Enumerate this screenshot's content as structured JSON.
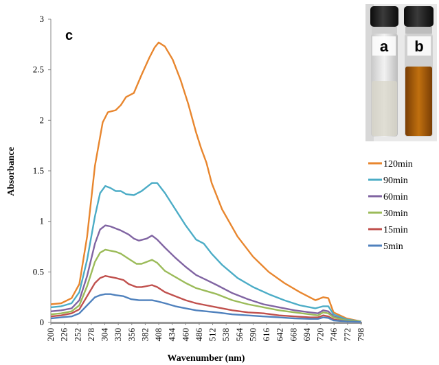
{
  "chart_data": {
    "type": "line",
    "panel_label": "c",
    "xlabel": "Wavenumber (nm)",
    "ylabel": "Absorbance",
    "xlim": [
      200,
      800
    ],
    "ylim": [
      0,
      3
    ],
    "x_ticks": [
      "200",
      "226",
      "252",
      "278",
      "304",
      "330",
      "356",
      "382",
      "408",
      "434",
      "460",
      "486",
      "512",
      "538",
      "564",
      "590",
      "616",
      "642",
      "668",
      "694",
      "720",
      "746",
      "772",
      "798"
    ],
    "y_ticks": [
      "0",
      "0.5",
      "1",
      "1.5",
      "2",
      "2.5",
      "3"
    ],
    "grid": false,
    "legend_position": "right",
    "inset_labels": [
      "a",
      "b"
    ],
    "series": [
      {
        "name": "120min",
        "color": "#E8862E",
        "points": [
          [
            200,
            0.18
          ],
          [
            220,
            0.19
          ],
          [
            240,
            0.24
          ],
          [
            255,
            0.38
          ],
          [
            270,
            0.85
          ],
          [
            285,
            1.55
          ],
          [
            300,
            1.98
          ],
          [
            310,
            2.08
          ],
          [
            325,
            2.1
          ],
          [
            335,
            2.15
          ],
          [
            345,
            2.23
          ],
          [
            360,
            2.27
          ],
          [
            375,
            2.45
          ],
          [
            390,
            2.62
          ],
          [
            400,
            2.72
          ],
          [
            408,
            2.77
          ],
          [
            420,
            2.73
          ],
          [
            435,
            2.6
          ],
          [
            450,
            2.4
          ],
          [
            465,
            2.16
          ],
          [
            480,
            1.88
          ],
          [
            490,
            1.72
          ],
          [
            500,
            1.58
          ],
          [
            510,
            1.38
          ],
          [
            530,
            1.12
          ],
          [
            560,
            0.85
          ],
          [
            590,
            0.65
          ],
          [
            620,
            0.5
          ],
          [
            650,
            0.39
          ],
          [
            680,
            0.3
          ],
          [
            710,
            0.22
          ],
          [
            725,
            0.25
          ],
          [
            735,
            0.24
          ],
          [
            745,
            0.1
          ],
          [
            770,
            0.04
          ],
          [
            798,
            0.01
          ]
        ]
      },
      {
        "name": "90min",
        "color": "#4BACC6",
        "points": [
          [
            200,
            0.15
          ],
          [
            220,
            0.16
          ],
          [
            240,
            0.19
          ],
          [
            255,
            0.3
          ],
          [
            270,
            0.62
          ],
          [
            285,
            1.05
          ],
          [
            295,
            1.28
          ],
          [
            305,
            1.35
          ],
          [
            315,
            1.33
          ],
          [
            325,
            1.3
          ],
          [
            335,
            1.3
          ],
          [
            345,
            1.27
          ],
          [
            360,
            1.26
          ],
          [
            375,
            1.3
          ],
          [
            385,
            1.34
          ],
          [
            395,
            1.38
          ],
          [
            405,
            1.38
          ],
          [
            420,
            1.28
          ],
          [
            440,
            1.12
          ],
          [
            460,
            0.96
          ],
          [
            480,
            0.82
          ],
          [
            495,
            0.78
          ],
          [
            510,
            0.68
          ],
          [
            530,
            0.57
          ],
          [
            560,
            0.44
          ],
          [
            590,
            0.35
          ],
          [
            620,
            0.28
          ],
          [
            650,
            0.22
          ],
          [
            680,
            0.17
          ],
          [
            710,
            0.14
          ],
          [
            725,
            0.16
          ],
          [
            735,
            0.16
          ],
          [
            745,
            0.08
          ],
          [
            770,
            0.03
          ],
          [
            798,
            0.01
          ]
        ]
      },
      {
        "name": "60min",
        "color": "#8064A2",
        "points": [
          [
            200,
            0.11
          ],
          [
            220,
            0.12
          ],
          [
            240,
            0.14
          ],
          [
            255,
            0.22
          ],
          [
            270,
            0.46
          ],
          [
            285,
            0.78
          ],
          [
            295,
            0.92
          ],
          [
            305,
            0.96
          ],
          [
            315,
            0.95
          ],
          [
            325,
            0.93
          ],
          [
            335,
            0.91
          ],
          [
            350,
            0.87
          ],
          [
            360,
            0.83
          ],
          [
            370,
            0.81
          ],
          [
            385,
            0.83
          ],
          [
            395,
            0.86
          ],
          [
            405,
            0.82
          ],
          [
            420,
            0.74
          ],
          [
            440,
            0.64
          ],
          [
            460,
            0.55
          ],
          [
            480,
            0.47
          ],
          [
            500,
            0.42
          ],
          [
            520,
            0.37
          ],
          [
            550,
            0.29
          ],
          [
            580,
            0.23
          ],
          [
            610,
            0.18
          ],
          [
            640,
            0.15
          ],
          [
            670,
            0.12
          ],
          [
            700,
            0.1
          ],
          [
            715,
            0.09
          ],
          [
            725,
            0.12
          ],
          [
            735,
            0.11
          ],
          [
            745,
            0.06
          ],
          [
            770,
            0.02
          ],
          [
            798,
            0.01
          ]
        ]
      },
      {
        "name": "30min",
        "color": "#9BBB59",
        "points": [
          [
            200,
            0.08
          ],
          [
            220,
            0.09
          ],
          [
            240,
            0.11
          ],
          [
            255,
            0.17
          ],
          [
            270,
            0.36
          ],
          [
            285,
            0.6
          ],
          [
            295,
            0.69
          ],
          [
            305,
            0.72
          ],
          [
            315,
            0.71
          ],
          [
            325,
            0.7
          ],
          [
            335,
            0.68
          ],
          [
            350,
            0.63
          ],
          [
            365,
            0.58
          ],
          [
            375,
            0.58
          ],
          [
            385,
            0.6
          ],
          [
            395,
            0.62
          ],
          [
            405,
            0.59
          ],
          [
            420,
            0.51
          ],
          [
            440,
            0.45
          ],
          [
            460,
            0.39
          ],
          [
            480,
            0.34
          ],
          [
            500,
            0.31
          ],
          [
            520,
            0.28
          ],
          [
            550,
            0.22
          ],
          [
            580,
            0.18
          ],
          [
            610,
            0.15
          ],
          [
            640,
            0.12
          ],
          [
            670,
            0.1
          ],
          [
            700,
            0.08
          ],
          [
            715,
            0.07
          ],
          [
            725,
            0.1
          ],
          [
            735,
            0.09
          ],
          [
            745,
            0.05
          ],
          [
            770,
            0.02
          ],
          [
            798,
            0.01
          ]
        ]
      },
      {
        "name": "15min",
        "color": "#C0504D",
        "points": [
          [
            200,
            0.06
          ],
          [
            220,
            0.07
          ],
          [
            240,
            0.09
          ],
          [
            255,
            0.13
          ],
          [
            270,
            0.26
          ],
          [
            285,
            0.39
          ],
          [
            295,
            0.44
          ],
          [
            305,
            0.46
          ],
          [
            315,
            0.45
          ],
          [
            325,
            0.44
          ],
          [
            340,
            0.42
          ],
          [
            350,
            0.38
          ],
          [
            365,
            0.35
          ],
          [
            375,
            0.35
          ],
          [
            385,
            0.36
          ],
          [
            395,
            0.37
          ],
          [
            405,
            0.35
          ],
          [
            420,
            0.3
          ],
          [
            440,
            0.26
          ],
          [
            460,
            0.22
          ],
          [
            480,
            0.19
          ],
          [
            500,
            0.17
          ],
          [
            520,
            0.15
          ],
          [
            550,
            0.12
          ],
          [
            580,
            0.1
          ],
          [
            610,
            0.09
          ],
          [
            640,
            0.07
          ],
          [
            670,
            0.06
          ],
          [
            700,
            0.05
          ],
          [
            715,
            0.05
          ],
          [
            725,
            0.07
          ],
          [
            735,
            0.06
          ],
          [
            745,
            0.03
          ],
          [
            770,
            0.01
          ],
          [
            798,
            0.005
          ]
        ]
      },
      {
        "name": "5min",
        "color": "#4F81BD",
        "points": [
          [
            200,
            0.04
          ],
          [
            220,
            0.05
          ],
          [
            240,
            0.06
          ],
          [
            255,
            0.09
          ],
          [
            270,
            0.17
          ],
          [
            285,
            0.25
          ],
          [
            295,
            0.27
          ],
          [
            305,
            0.28
          ],
          [
            315,
            0.28
          ],
          [
            325,
            0.27
          ],
          [
            340,
            0.26
          ],
          [
            355,
            0.23
          ],
          [
            370,
            0.22
          ],
          [
            385,
            0.22
          ],
          [
            395,
            0.22
          ],
          [
            405,
            0.21
          ],
          [
            420,
            0.19
          ],
          [
            440,
            0.16
          ],
          [
            460,
            0.14
          ],
          [
            480,
            0.12
          ],
          [
            500,
            0.11
          ],
          [
            520,
            0.1
          ],
          [
            550,
            0.08
          ],
          [
            580,
            0.07
          ],
          [
            610,
            0.06
          ],
          [
            640,
            0.05
          ],
          [
            670,
            0.04
          ],
          [
            700,
            0.035
          ],
          [
            715,
            0.035
          ],
          [
            725,
            0.05
          ],
          [
            735,
            0.045
          ],
          [
            745,
            0.02
          ],
          [
            770,
            0.01
          ],
          [
            798,
            0.005
          ]
        ]
      }
    ]
  }
}
